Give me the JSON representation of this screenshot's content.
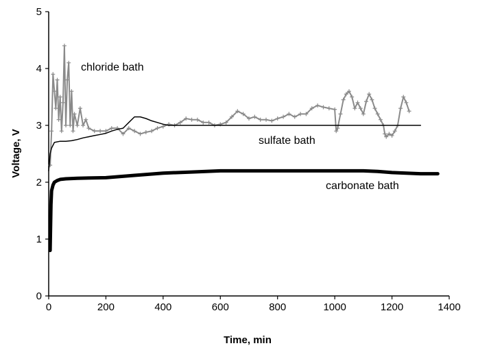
{
  "chart_data": {
    "type": "line",
    "title": "",
    "xlabel": "Time, min",
    "ylabel": "Voltage, V",
    "xlim": [
      0,
      1400
    ],
    "ylim": [
      0,
      5
    ],
    "xticks": [
      0,
      200,
      400,
      600,
      800,
      1000,
      1200,
      1400
    ],
    "yticks": [
      0,
      1,
      2,
      3,
      4,
      5
    ],
    "grid": false,
    "legend": "none",
    "series": [
      {
        "name": "chloride bath",
        "color": "#8a8a8a",
        "marker": "plus",
        "x": [
          5,
          10,
          15,
          20,
          25,
          30,
          35,
          40,
          45,
          50,
          55,
          60,
          65,
          70,
          75,
          80,
          85,
          90,
          100,
          110,
          120,
          130,
          140,
          160,
          180,
          200,
          220,
          240,
          260,
          280,
          300,
          320,
          340,
          360,
          380,
          400,
          420,
          440,
          460,
          480,
          500,
          520,
          540,
          560,
          580,
          600,
          620,
          640,
          660,
          680,
          700,
          720,
          740,
          760,
          780,
          800,
          820,
          840,
          860,
          880,
          900,
          920,
          940,
          960,
          980,
          1000,
          1005,
          1010,
          1020,
          1030,
          1040,
          1050,
          1060,
          1070,
          1080,
          1090,
          1100,
          1110,
          1120,
          1130,
          1140,
          1150,
          1160,
          1170,
          1175,
          1180,
          1190,
          1200,
          1210,
          1220,
          1230,
          1240,
          1250,
          1260
        ],
        "y": [
          2.3,
          2.9,
          3.9,
          3.6,
          3.3,
          3.8,
          3.1,
          3.5,
          2.9,
          3.4,
          4.4,
          3.0,
          3.8,
          4.1,
          3.0,
          3.6,
          2.9,
          3.2,
          3.0,
          3.3,
          3.0,
          3.1,
          2.95,
          2.9,
          2.9,
          2.9,
          2.95,
          2.95,
          2.85,
          2.95,
          2.9,
          2.85,
          2.88,
          2.9,
          2.95,
          2.98,
          3.02,
          3.0,
          3.05,
          3.12,
          3.1,
          3.1,
          3.05,
          3.05,
          3.0,
          3.02,
          3.05,
          3.15,
          3.25,
          3.2,
          3.12,
          3.15,
          3.1,
          3.1,
          3.08,
          3.12,
          3.15,
          3.2,
          3.15,
          3.2,
          3.2,
          3.3,
          3.35,
          3.32,
          3.3,
          3.28,
          2.9,
          2.95,
          3.2,
          3.45,
          3.55,
          3.6,
          3.5,
          3.3,
          3.4,
          3.3,
          3.2,
          3.42,
          3.55,
          3.45,
          3.3,
          3.2,
          3.1,
          3.0,
          2.85,
          2.8,
          2.85,
          2.82,
          2.9,
          3.0,
          3.3,
          3.5,
          3.4,
          3.25
        ]
      },
      {
        "name": "sulfate bath",
        "color": "#000000",
        "marker": "none",
        "x": [
          0,
          5,
          10,
          15,
          20,
          40,
          60,
          80,
          100,
          120,
          140,
          160,
          180,
          200,
          220,
          240,
          260,
          280,
          300,
          320,
          340,
          360,
          380,
          400,
          420,
          440,
          460,
          500,
          600,
          700,
          800,
          900,
          1000,
          1100,
          1200,
          1300
        ],
        "y": [
          2.2,
          2.5,
          2.6,
          2.65,
          2.7,
          2.72,
          2.72,
          2.73,
          2.75,
          2.78,
          2.8,
          2.82,
          2.84,
          2.86,
          2.9,
          2.93,
          2.95,
          3.05,
          3.15,
          3.15,
          3.12,
          3.08,
          3.05,
          3.02,
          3.0,
          3.0,
          3.0,
          3.0,
          3.0,
          3.0,
          3.0,
          3.0,
          3.0,
          3.0,
          3.0,
          3.0
        ]
      },
      {
        "name": "carbonate bath",
        "color": "#000000",
        "marker": "thick",
        "x": [
          5,
          8,
          10,
          15,
          20,
          30,
          40,
          60,
          100,
          200,
          300,
          400,
          500,
          600,
          700,
          800,
          900,
          1000,
          1100,
          1150,
          1200,
          1300,
          1360
        ],
        "y": [
          0.8,
          1.6,
          1.85,
          1.95,
          2.0,
          2.03,
          2.05,
          2.06,
          2.07,
          2.08,
          2.12,
          2.16,
          2.18,
          2.2,
          2.2,
          2.2,
          2.2,
          2.2,
          2.2,
          2.19,
          2.17,
          2.15,
          2.15
        ]
      }
    ]
  }
}
